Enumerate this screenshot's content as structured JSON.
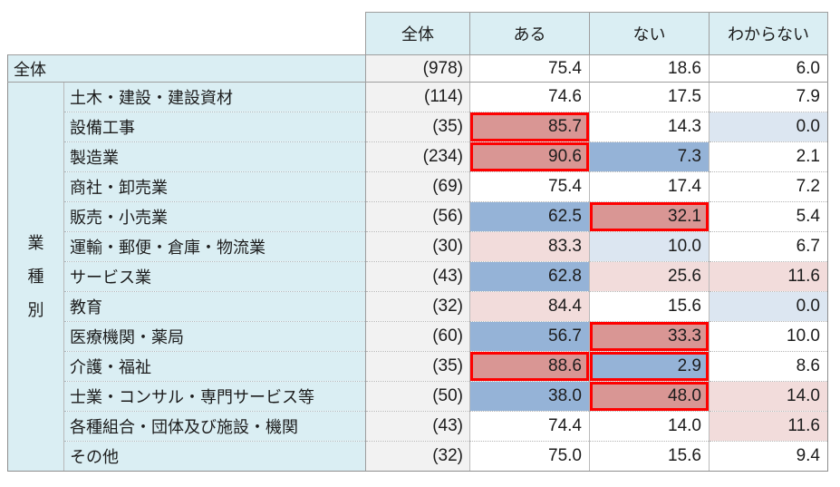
{
  "table": {
    "columns": [
      "全体",
      "ある",
      "ない",
      "わからない"
    ],
    "group_label": "業種別",
    "group_chars": [
      "業",
      "種",
      "別"
    ],
    "total_row": {
      "label": "全体",
      "n": "(978)",
      "values": [
        "75.4",
        "18.6",
        "6.0"
      ],
      "hl": [
        "",
        "",
        ""
      ]
    },
    "rows": [
      {
        "label": "土木・建設・建設資材",
        "n": "(114)",
        "values": [
          "74.6",
          "17.5",
          "7.9"
        ],
        "hl": [
          "",
          "",
          ""
        ]
      },
      {
        "label": "設備工事",
        "n": "(35)",
        "values": [
          "85.7",
          "14.3",
          "0.0"
        ],
        "hl": [
          "rs",
          "",
          "bl"
        ]
      },
      {
        "label": "製造業",
        "n": "(234)",
        "values": [
          "90.6",
          "7.3",
          "2.1"
        ],
        "hl": [
          "rs",
          "bs",
          ""
        ]
      },
      {
        "label": "商社・卸売業",
        "n": "(69)",
        "values": [
          "75.4",
          "17.4",
          "7.2"
        ],
        "hl": [
          "",
          "",
          ""
        ]
      },
      {
        "label": "販売・小売業",
        "n": "(56)",
        "values": [
          "62.5",
          "32.1",
          "5.4"
        ],
        "hl": [
          "bs",
          "rs",
          ""
        ]
      },
      {
        "label": "運輸・郵便・倉庫・物流業",
        "n": "(30)",
        "values": [
          "83.3",
          "10.0",
          "6.7"
        ],
        "hl": [
          "rl",
          "bl",
          ""
        ]
      },
      {
        "label": "サービス業",
        "n": "(43)",
        "values": [
          "62.8",
          "25.6",
          "11.6"
        ],
        "hl": [
          "bs",
          "rl",
          "rl"
        ]
      },
      {
        "label": "教育",
        "n": "(32)",
        "values": [
          "84.4",
          "15.6",
          "0.0"
        ],
        "hl": [
          "rl",
          "",
          "bl"
        ]
      },
      {
        "label": "医療機関・薬局",
        "n": "(60)",
        "values": [
          "56.7",
          "33.3",
          "10.0"
        ],
        "hl": [
          "bs",
          "rs",
          ""
        ]
      },
      {
        "label": "介護・福祉",
        "n": "(35)",
        "values": [
          "88.6",
          "2.9",
          "8.6"
        ],
        "hl": [
          "rs",
          "bsr",
          ""
        ]
      },
      {
        "label": "士業・コンサル・専門サービス等",
        "n": "(50)",
        "values": [
          "38.0",
          "48.0",
          "14.0"
        ],
        "hl": [
          "bs",
          "rs",
          "rl"
        ]
      },
      {
        "label": "各種組合・団体及び施設・機関",
        "n": "(43)",
        "values": [
          "74.4",
          "14.0",
          "11.6"
        ],
        "hl": [
          "",
          "",
          "rl"
        ]
      },
      {
        "label": "その他",
        "n": "(32)",
        "values": [
          "75.0",
          "15.6",
          "9.4"
        ],
        "hl": [
          "",
          "",
          ""
        ]
      }
    ],
    "highlight_styles": {
      "rs": "red-fill-with-red-box",
      "rl": "light-red-fill",
      "bs": "blue-fill",
      "bsr": "blue-fill-with-red-box",
      "bl": "light-blue-fill"
    }
  },
  "colors": {
    "header_bg": "#daeef3",
    "label_bg": "#daeef3",
    "n_bg": "#f2f2f2",
    "red_strong": "#d99694",
    "red_light": "#f2dcdb",
    "blue_strong": "#95b3d7",
    "blue_light": "#dce6f1",
    "red_border": "#fe0000",
    "text": "#1c1c1c"
  },
  "chart_data": {
    "type": "table",
    "columns": [
      "n",
      "ある",
      "ない",
      "わからない"
    ],
    "rows": [
      {
        "group": "全体",
        "label": "全体",
        "n": 978,
        "values": [
          75.4,
          18.6,
          6.0
        ],
        "highlight": [
          "",
          "",
          ""
        ]
      },
      {
        "group": "業種別",
        "label": "土木・建設・建設資材",
        "n": 114,
        "values": [
          74.6,
          17.5,
          7.9
        ],
        "highlight": [
          "",
          "",
          ""
        ]
      },
      {
        "group": "業種別",
        "label": "設備工事",
        "n": 35,
        "values": [
          85.7,
          14.3,
          0.0
        ],
        "highlight": [
          "red-box",
          "",
          "light-blue"
        ]
      },
      {
        "group": "業種別",
        "label": "製造業",
        "n": 234,
        "values": [
          90.6,
          7.3,
          2.1
        ],
        "highlight": [
          "red-box",
          "blue",
          ""
        ]
      },
      {
        "group": "業種別",
        "label": "商社・卸売業",
        "n": 69,
        "values": [
          75.4,
          17.4,
          7.2
        ],
        "highlight": [
          "",
          "",
          ""
        ]
      },
      {
        "group": "業種別",
        "label": "販売・小売業",
        "n": 56,
        "values": [
          62.5,
          32.1,
          5.4
        ],
        "highlight": [
          "blue",
          "red-box",
          ""
        ]
      },
      {
        "group": "業種別",
        "label": "運輸・郵便・倉庫・物流業",
        "n": 30,
        "values": [
          83.3,
          10.0,
          6.7
        ],
        "highlight": [
          "light-red",
          "light-blue",
          ""
        ]
      },
      {
        "group": "業種別",
        "label": "サービス業",
        "n": 43,
        "values": [
          62.8,
          25.6,
          11.6
        ],
        "highlight": [
          "blue",
          "light-red",
          "light-red"
        ]
      },
      {
        "group": "業種別",
        "label": "教育",
        "n": 32,
        "values": [
          84.4,
          15.6,
          0.0
        ],
        "highlight": [
          "light-red",
          "",
          "light-blue"
        ]
      },
      {
        "group": "業種別",
        "label": "医療機関・薬局",
        "n": 60,
        "values": [
          56.7,
          33.3,
          10.0
        ],
        "highlight": [
          "blue",
          "red-box",
          ""
        ]
      },
      {
        "group": "業種別",
        "label": "介護・福祉",
        "n": 35,
        "values": [
          88.6,
          2.9,
          8.6
        ],
        "highlight": [
          "red-box",
          "blue-red-box",
          ""
        ]
      },
      {
        "group": "業種別",
        "label": "士業・コンサル・専門サービス等",
        "n": 50,
        "values": [
          38.0,
          48.0,
          14.0
        ],
        "highlight": [
          "blue",
          "red-box",
          "light-red"
        ]
      },
      {
        "group": "業種別",
        "label": "各種組合・団体及び施設・機関",
        "n": 43,
        "values": [
          74.4,
          14.0,
          11.6
        ],
        "highlight": [
          "",
          "",
          "light-red"
        ]
      },
      {
        "group": "業種別",
        "label": "その他",
        "n": 32,
        "values": [
          75.0,
          15.6,
          9.4
        ],
        "highlight": [
          "",
          "",
          ""
        ]
      }
    ]
  }
}
